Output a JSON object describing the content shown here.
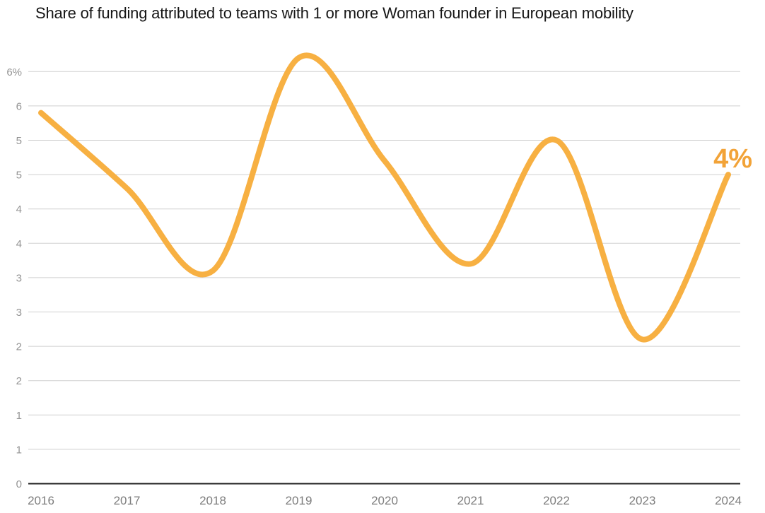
{
  "chart_data": {
    "type": "line",
    "title": "Share of funding attributed to teams with 1 or more Woman founder in European mobility",
    "xlabel": "",
    "ylabel": "",
    "x": [
      2016,
      2017,
      2018,
      2019,
      2020,
      2021,
      2022,
      2023,
      2024
    ],
    "values": [
      5.4,
      4.3,
      3.1,
      6.2,
      4.7,
      3.2,
      5.0,
      2.1,
      4.5
    ],
    "xtick_labels": [
      "2016",
      "2017",
      "2018",
      "2019",
      "2020",
      "2021",
      "2022",
      "2023",
      "2024"
    ],
    "ylim": [
      0,
      6
    ],
    "ytick_step": 0.5,
    "ytick_labels_bottom_to_top": [
      "0",
      "1",
      "1",
      "2",
      "2",
      "3",
      "3",
      "4",
      "4",
      "5",
      "5",
      "6",
      "6%"
    ],
    "grid": "horizontal",
    "legend": "none",
    "curve": "smooth",
    "end_label": "4%"
  },
  "colors": {
    "line": "#F7B042",
    "end_label": "#F2A338",
    "title_text": "#161616",
    "y_axis_text": "#949494",
    "x_axis_text": "#7d7d7d",
    "gridline": "#cfcfcf",
    "baseline": "#202020",
    "background": "#ffffff"
  }
}
